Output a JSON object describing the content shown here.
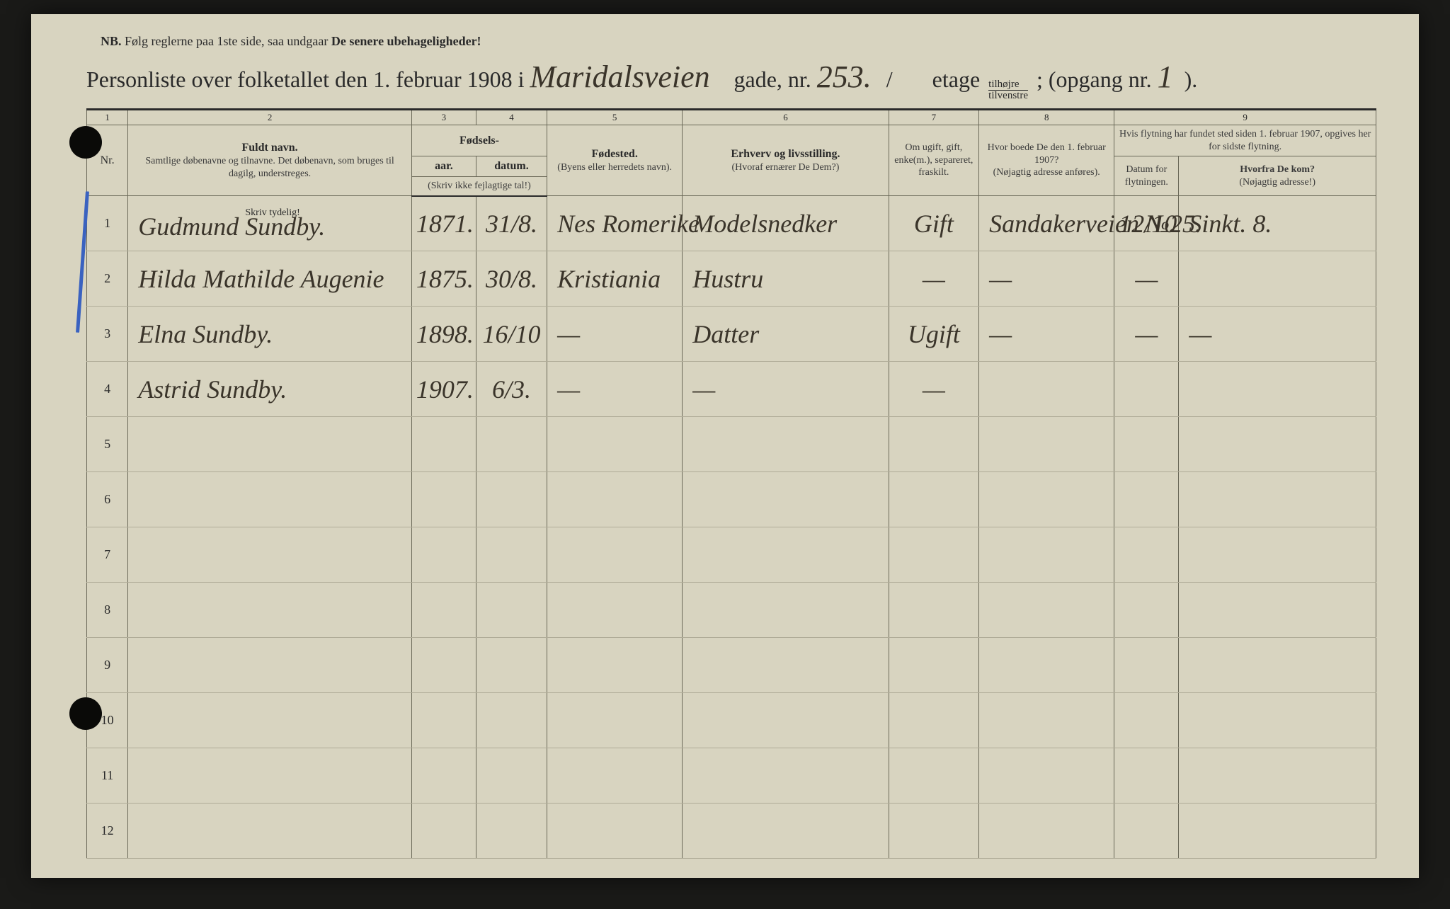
{
  "nb": {
    "prefix": "NB.",
    "text1": "Følg reglerne paa 1ste side, saa undgaar",
    "text2": "De senere ubehageligheder!"
  },
  "heading": {
    "p1": "Personliste over folketallet den 1. februar 1908 i",
    "street_hand": "Maridalsveien",
    "p2": "gade, nr.",
    "nr_hand": "253.",
    "p3": "/",
    "p4": "etage",
    "tilhojre_top": "tilhøjre",
    "tilhojre_bot": "tilvenstre",
    "etage_hand": "",
    "p5": "; (opgang nr.",
    "opgang_hand": "1",
    "p6": ")."
  },
  "colnums": [
    "1",
    "2",
    "3",
    "4",
    "5",
    "6",
    "7",
    "8",
    "9"
  ],
  "headers": {
    "nr": "Nr.",
    "name_title": "Fuldt navn.",
    "name_sub": "Samtlige døbenavne og tilnavne. Det døbenavn, som bruges til dagilg, understreges.",
    "birth_group": "Fødsels-",
    "birth_year": "aar.",
    "birth_date": "datum.",
    "birth_note": "(Skriv ikke fejlagtige tal!)",
    "place_title": "Fødested.",
    "place_sub": "(Byens eller herredets navn).",
    "occ_title": "Erhverv og livsstilling.",
    "occ_sub": "(Hvoraf ernærer De Dem?)",
    "status": "Om ugift, gift, enke(m.), separeret, fraskilt.",
    "prev_title": "Hvor boede De den 1. februar 1907?",
    "prev_sub": "(Nøjagtig adresse anføres).",
    "move_group": "Hvis flytning har fundet sted siden 1. februar 1907, opgives her for sidste flytning.",
    "move_date": "Datum for flytningen.",
    "move_from_title": "Hvorfra De kom?",
    "move_from_sub": "(Nøjagtig adresse!)",
    "skriv": "Skriv tydelig!"
  },
  "rows": [
    {
      "nr": "1",
      "name": "Gudmund Sundby.",
      "year": "1871.",
      "date": "31/8.",
      "place": "Nes Romerike",
      "occ": "Modelsnedker",
      "status": "Gift",
      "prev": "Sandakerveien №25.",
      "mdate": "12/10",
      "mfrom": "Sinkt. 8."
    },
    {
      "nr": "2",
      "name": "Hilda Mathilde Augenie",
      "year": "1875.",
      "date": "30/8.",
      "place": "Kristiania",
      "occ": "Hustru",
      "status": "—",
      "prev": "—",
      "mdate": "—",
      "mfrom": ""
    },
    {
      "nr": "3",
      "name": "Elna Sundby.",
      "year": "1898.",
      "date": "16/10",
      "place": "—",
      "occ": "Datter",
      "status": "Ugift",
      "prev": "—",
      "mdate": "—",
      "mfrom": "—"
    },
    {
      "nr": "4",
      "name": "Astrid Sundby.",
      "year": "1907.",
      "date": "6/3.",
      "place": "—",
      "occ": "—",
      "status": "—",
      "prev": "",
      "mdate": "",
      "mfrom": ""
    },
    {
      "nr": "5",
      "name": "",
      "year": "",
      "date": "",
      "place": "",
      "occ": "",
      "status": "",
      "prev": "",
      "mdate": "",
      "mfrom": ""
    },
    {
      "nr": "6",
      "name": "",
      "year": "",
      "date": "",
      "place": "",
      "occ": "",
      "status": "",
      "prev": "",
      "mdate": "",
      "mfrom": ""
    },
    {
      "nr": "7",
      "name": "",
      "year": "",
      "date": "",
      "place": "",
      "occ": "",
      "status": "",
      "prev": "",
      "mdate": "",
      "mfrom": ""
    },
    {
      "nr": "8",
      "name": "",
      "year": "",
      "date": "",
      "place": "",
      "occ": "",
      "status": "",
      "prev": "",
      "mdate": "",
      "mfrom": ""
    },
    {
      "nr": "9",
      "name": "",
      "year": "",
      "date": "",
      "place": "",
      "occ": "",
      "status": "",
      "prev": "",
      "mdate": "",
      "mfrom": ""
    },
    {
      "nr": "10",
      "name": "",
      "year": "",
      "date": "",
      "place": "",
      "occ": "",
      "status": "",
      "prev": "",
      "mdate": "",
      "mfrom": ""
    },
    {
      "nr": "11",
      "name": "",
      "year": "",
      "date": "",
      "place": "",
      "occ": "",
      "status": "",
      "prev": "",
      "mdate": "",
      "mfrom": ""
    },
    {
      "nr": "12",
      "name": "",
      "year": "",
      "date": "",
      "place": "",
      "occ": "",
      "status": "",
      "prev": "",
      "mdate": "",
      "mfrom": ""
    }
  ],
  "colors": {
    "paper": "#d8d4c0",
    "ink": "#2a2a2a",
    "handwriting": "#3a342a",
    "rule": "#6a6858",
    "blue": "#3a62c0"
  }
}
